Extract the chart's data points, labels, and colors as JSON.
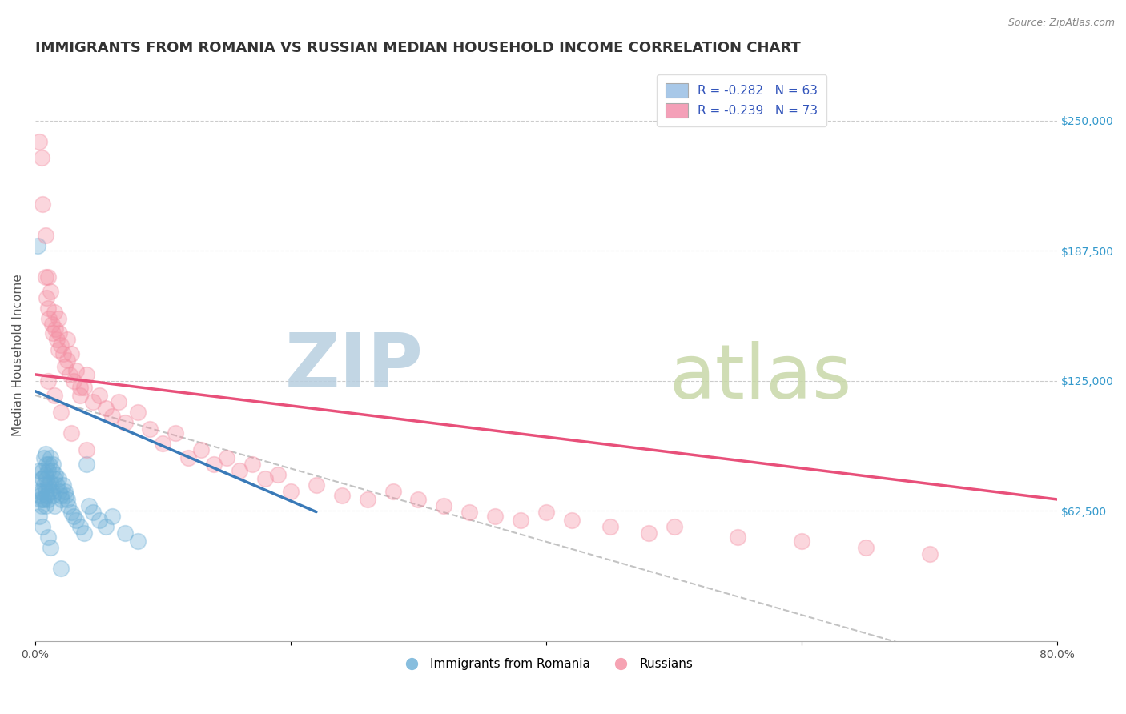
{
  "title": "IMMIGRANTS FROM ROMANIA VS RUSSIAN MEDIAN HOUSEHOLD INCOME CORRELATION CHART",
  "source_text": "Source: ZipAtlas.com",
  "ylabel": "Median Household Income",
  "xlim": [
    0.0,
    0.8
  ],
  "ylim": [
    0,
    275000
  ],
  "yticks": [
    62500,
    125000,
    187500,
    250000
  ],
  "ytick_labels": [
    "$62,500",
    "$125,000",
    "$187,500",
    "$250,000"
  ],
  "xticks": [
    0.0,
    0.2,
    0.4,
    0.6,
    0.8
  ],
  "xtick_labels": [
    "0.0%",
    "",
    "",
    "",
    "80.0%"
  ],
  "legend_entries": [
    {
      "label": "R = -0.282   N = 63",
      "color": "#a8c8e8"
    },
    {
      "label": "R = -0.239   N = 73",
      "color": "#f4a0b8"
    }
  ],
  "romania_color": "#6aaed6",
  "russian_color": "#f48ca0",
  "romania_line_color": "#3a7ab8",
  "russian_line_color": "#e8507a",
  "romania_scatter_x": [
    0.002,
    0.003,
    0.003,
    0.004,
    0.004,
    0.005,
    0.005,
    0.005,
    0.006,
    0.006,
    0.006,
    0.007,
    0.007,
    0.007,
    0.008,
    0.008,
    0.008,
    0.008,
    0.009,
    0.009,
    0.009,
    0.01,
    0.01,
    0.01,
    0.011,
    0.011,
    0.012,
    0.012,
    0.013,
    0.013,
    0.014,
    0.014,
    0.015,
    0.015,
    0.016,
    0.017,
    0.018,
    0.019,
    0.02,
    0.021,
    0.022,
    0.023,
    0.024,
    0.025,
    0.026,
    0.028,
    0.03,
    0.032,
    0.035,
    0.038,
    0.04,
    0.042,
    0.045,
    0.05,
    0.055,
    0.06,
    0.07,
    0.08,
    0.01,
    0.012,
    0.003,
    0.006,
    0.02
  ],
  "romania_scatter_y": [
    190000,
    82000,
    72000,
    70000,
    68000,
    78000,
    72000,
    65000,
    82000,
    78000,
    68000,
    88000,
    75000,
    68000,
    90000,
    80000,
    72000,
    65000,
    85000,
    78000,
    70000,
    82000,
    75000,
    68000,
    85000,
    72000,
    88000,
    76000,
    82000,
    72000,
    85000,
    70000,
    78000,
    65000,
    80000,
    75000,
    78000,
    72000,
    70000,
    68000,
    75000,
    72000,
    70000,
    68000,
    65000,
    62000,
    60000,
    58000,
    55000,
    52000,
    85000,
    65000,
    62000,
    58000,
    55000,
    60000,
    52000,
    48000,
    50000,
    45000,
    60000,
    55000,
    35000
  ],
  "russian_scatter_x": [
    0.003,
    0.005,
    0.006,
    0.008,
    0.008,
    0.009,
    0.01,
    0.01,
    0.011,
    0.012,
    0.013,
    0.014,
    0.015,
    0.016,
    0.017,
    0.018,
    0.019,
    0.02,
    0.022,
    0.023,
    0.025,
    0.027,
    0.028,
    0.03,
    0.032,
    0.035,
    0.038,
    0.04,
    0.045,
    0.05,
    0.055,
    0.06,
    0.065,
    0.07,
    0.08,
    0.09,
    0.1,
    0.11,
    0.12,
    0.13,
    0.14,
    0.15,
    0.16,
    0.17,
    0.18,
    0.19,
    0.2,
    0.22,
    0.24,
    0.26,
    0.28,
    0.3,
    0.32,
    0.34,
    0.36,
    0.38,
    0.4,
    0.42,
    0.45,
    0.48,
    0.5,
    0.55,
    0.6,
    0.65,
    0.7,
    0.01,
    0.015,
    0.02,
    0.028,
    0.04,
    0.018,
    0.025,
    0.035
  ],
  "russian_scatter_y": [
    240000,
    232000,
    210000,
    195000,
    175000,
    165000,
    175000,
    160000,
    155000,
    168000,
    152000,
    148000,
    158000,
    150000,
    145000,
    140000,
    148000,
    142000,
    138000,
    132000,
    145000,
    128000,
    138000,
    125000,
    130000,
    118000,
    122000,
    128000,
    115000,
    118000,
    112000,
    108000,
    115000,
    105000,
    110000,
    102000,
    95000,
    100000,
    88000,
    92000,
    85000,
    88000,
    82000,
    85000,
    78000,
    80000,
    72000,
    75000,
    70000,
    68000,
    72000,
    68000,
    65000,
    62000,
    60000,
    58000,
    62000,
    58000,
    55000,
    52000,
    55000,
    50000,
    48000,
    45000,
    42000,
    125000,
    118000,
    110000,
    100000,
    92000,
    155000,
    135000,
    122000
  ],
  "romania_trend_x": [
    0.0,
    0.22
  ],
  "romania_trend_y": [
    120000,
    62000
  ],
  "russian_trend_x": [
    0.0,
    0.8
  ],
  "russian_trend_y": [
    128000,
    68000
  ],
  "dashed_trend_x": [
    0.0,
    0.7
  ],
  "dashed_trend_y": [
    118000,
    -5000
  ],
  "watermark_zip": "ZIP",
  "watermark_atlas": "atlas",
  "watermark_color_zip": "#b8cfe0",
  "watermark_color_atlas": "#c8d8a8",
  "background_color": "#ffffff",
  "grid_color": "#cccccc",
  "title_fontsize": 13,
  "axis_label_fontsize": 11,
  "tick_label_fontsize": 10,
  "scatter_size": 200,
  "scatter_alpha": 0.35,
  "legend_fontsize": 11
}
